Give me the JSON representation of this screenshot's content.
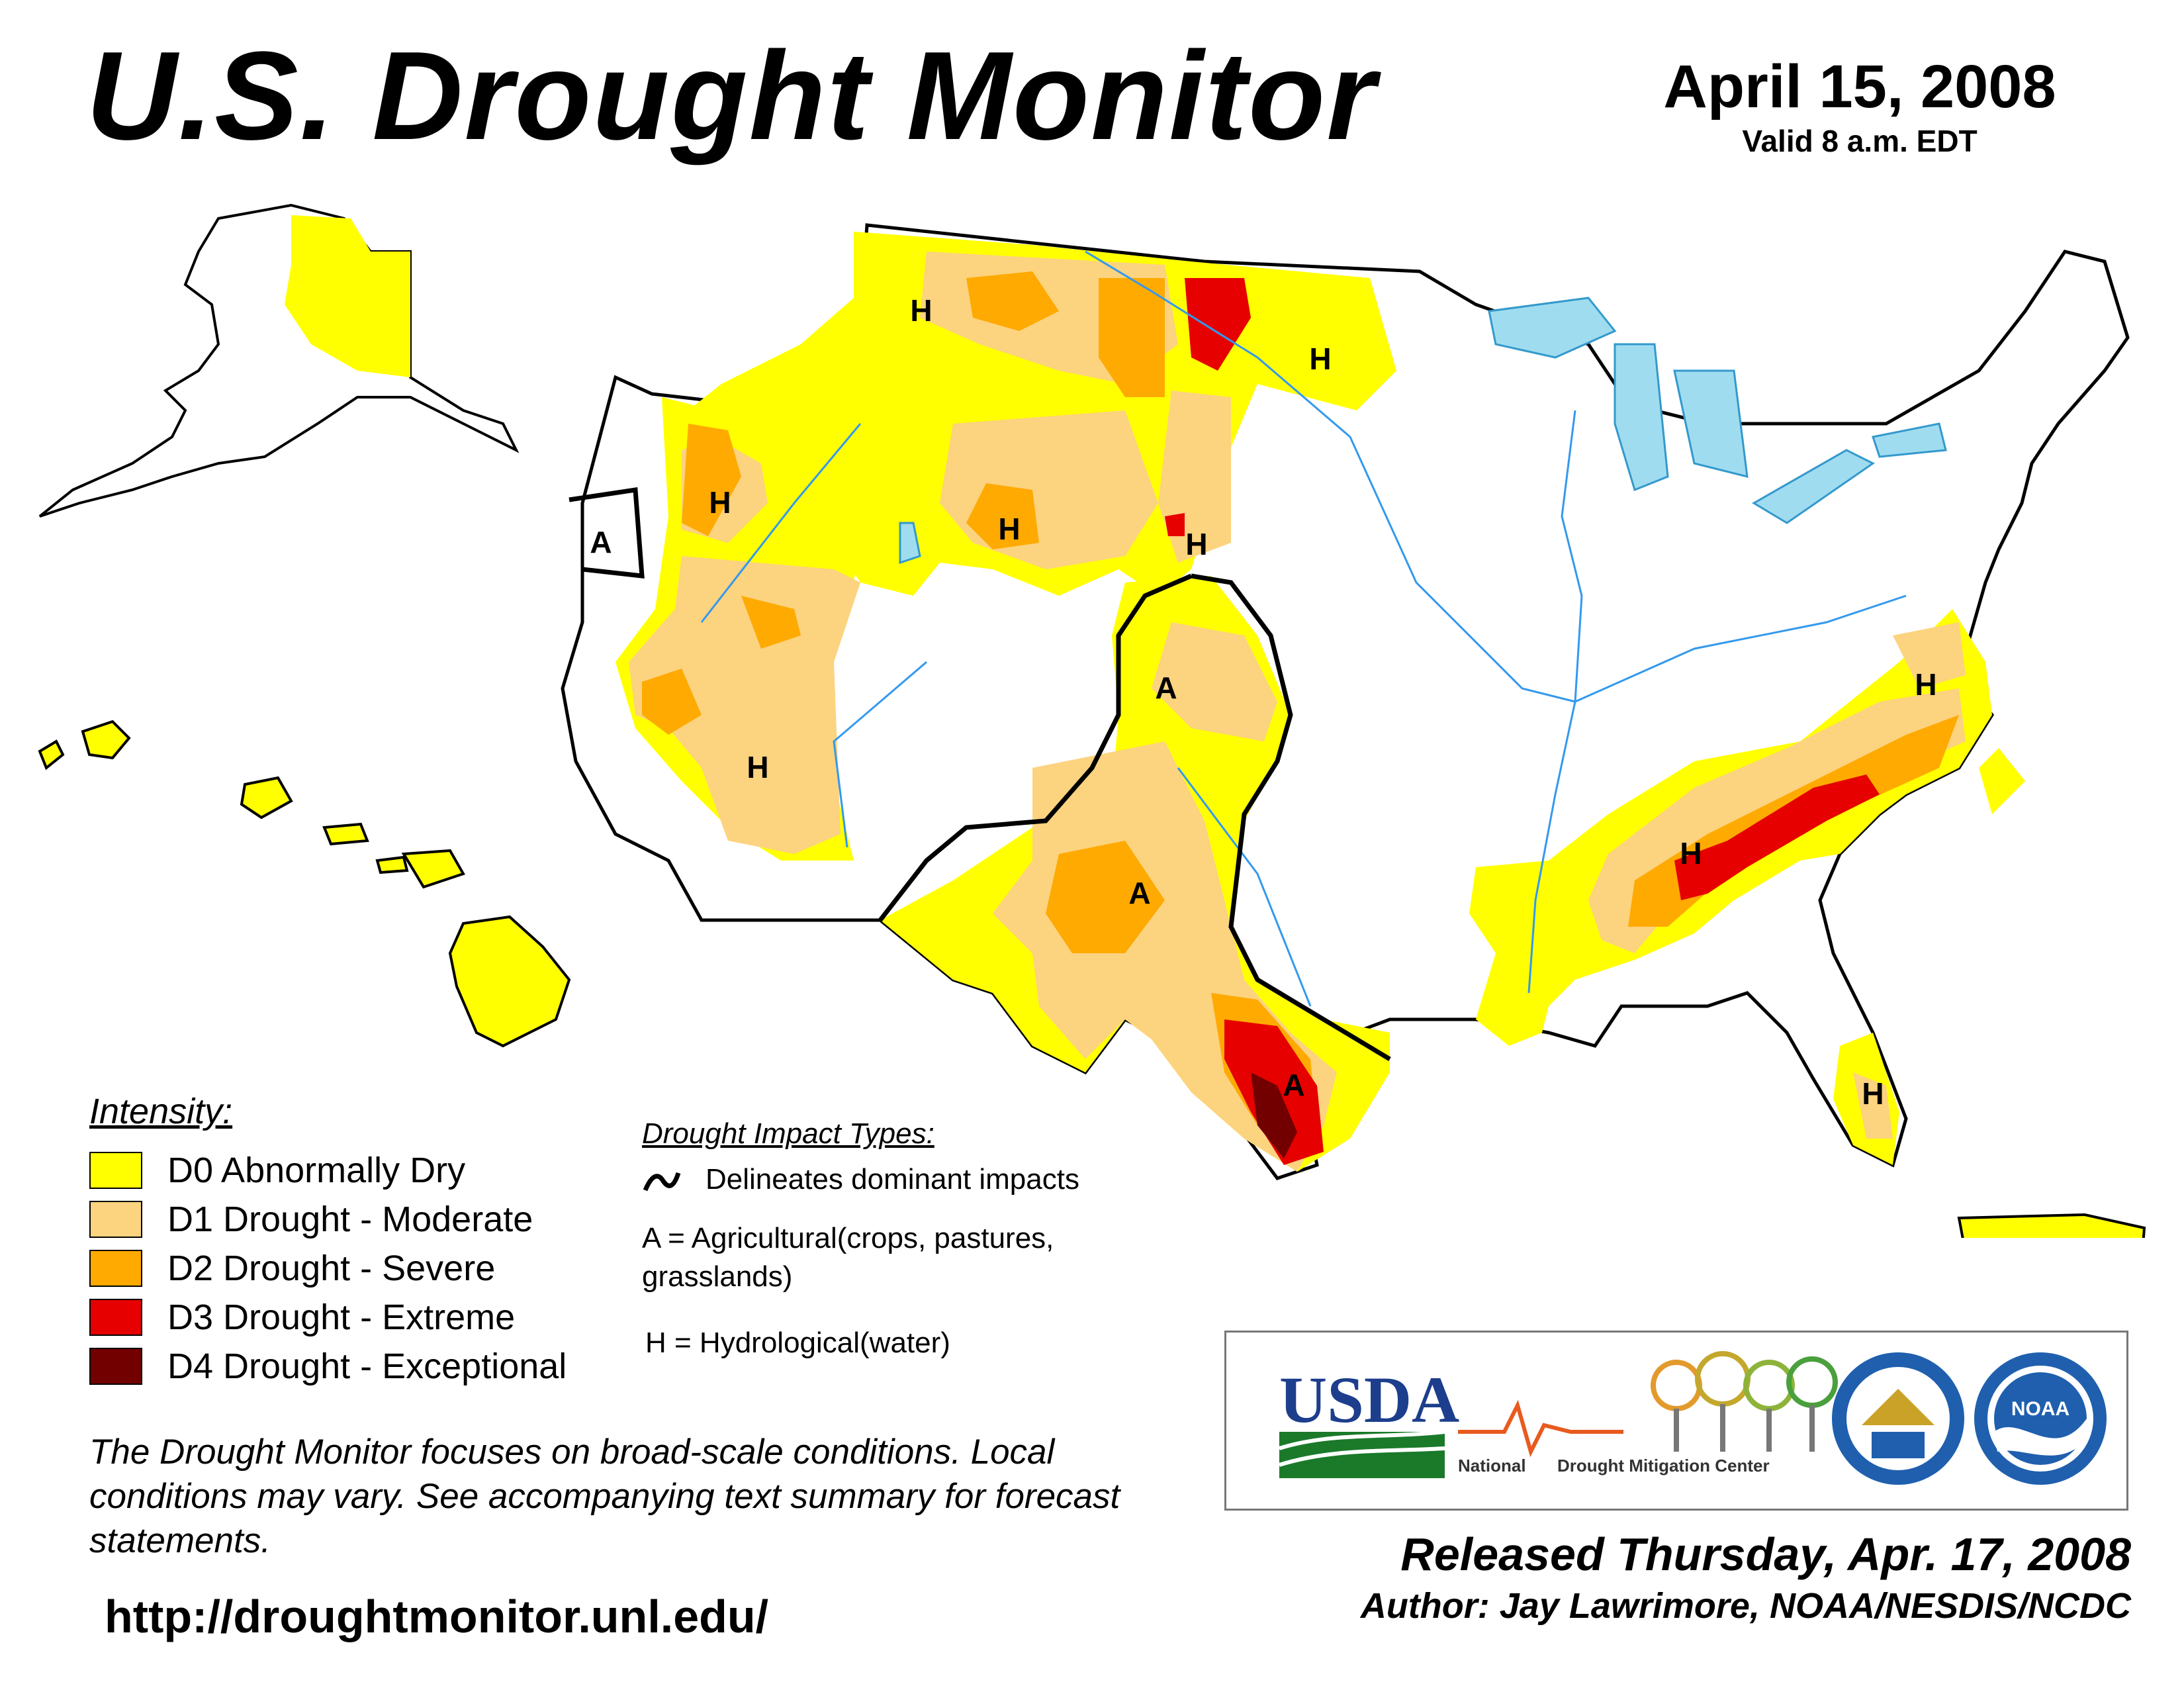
{
  "header": {
    "title": "U.S. Drought Monitor",
    "date": "April 15, 2008",
    "valid": "Valid 8 a.m. EDT"
  },
  "map": {
    "impact_labels": [
      {
        "label": "A",
        "region": "northern California"
      },
      {
        "label": "H",
        "region": "southern Oregon"
      },
      {
        "label": "H",
        "region": "southern Arizona"
      },
      {
        "label": "H",
        "region": "northern Idaho"
      },
      {
        "label": "H",
        "region": "Wyoming"
      },
      {
        "label": "H",
        "region": "western South Dakota"
      },
      {
        "label": "H",
        "region": "North Dakota"
      },
      {
        "label": "A",
        "region": "western Kansas"
      },
      {
        "label": "A",
        "region": "west Texas"
      },
      {
        "label": "A",
        "region": "south Texas"
      },
      {
        "label": "H",
        "region": "Alabama / Georgia"
      },
      {
        "label": "H",
        "region": "Virginia"
      },
      {
        "label": "H",
        "region": "Florida"
      }
    ]
  },
  "legend": {
    "title": "Intensity:",
    "items": [
      {
        "label": "D0 Abnormally Dry",
        "color": "#ffff00"
      },
      {
        "label": "D1 Drought - Moderate",
        "color": "#fcd37f"
      },
      {
        "label": "D2 Drought - Severe",
        "color": "#ffaa00"
      },
      {
        "label": "D3 Drought - Extreme",
        "color": "#e60000"
      },
      {
        "label": "D4 Drought - Exceptional",
        "color": "#730000"
      }
    ]
  },
  "impacts": {
    "title": "Drought Impact Types:",
    "line_text": "Delineates dominant impacts",
    "a_text": "A = Agricultural(crops, pastures, grasslands)",
    "h_text": "H = Hydrological(water)"
  },
  "note": "The Drought Monitor focuses on broad-scale conditions. Local conditions may vary. See accompanying text summary for forecast statements.",
  "url": "http://droughtmonitor.unl.edu/",
  "logos": {
    "usda": "USDA",
    "ndmc_left": "National",
    "ndmc_right": "Drought Mitigation Center",
    "noaa": "NOAA"
  },
  "released": "Released Thursday, Apr. 17, 2008",
  "author": "Author: Jay Lawrimore, NOAA/NESDIS/NCDC"
}
